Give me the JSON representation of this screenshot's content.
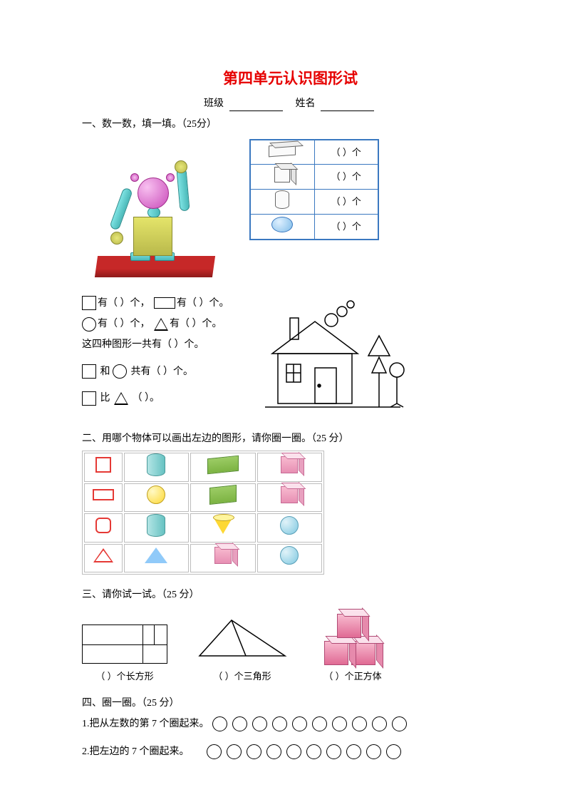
{
  "title": "第四单元认识图形试",
  "header": {
    "class_label": "班级",
    "name_label": "姓名"
  },
  "q1": {
    "heading": "一、数一数，填一填。（25分）",
    "table_unit": "（   ）个",
    "shapes": [
      "cuboid",
      "cube",
      "cylinder",
      "sphere"
    ],
    "line1a": "有（   ）个，",
    "line1b": "有（   ）个。",
    "line2a": "有（   ）个，",
    "line2b": "有（   ）个。",
    "line3": "这四种图形一共有（      ）个。",
    "line4_mid": "和",
    "line4_end": "共有（      ）个。",
    "line5_mid": "比",
    "line5_end": "（         ）。"
  },
  "q2": {
    "heading": "二、用哪个物体可以画出左边的图形，请你圈一圈。（25 分）"
  },
  "q3": {
    "heading": "三、请你试一试。（25 分）",
    "label_rect": "（         ）个长方形",
    "label_tri": "（       ）个三角形",
    "label_cube": "（           ）个正方体"
  },
  "q4": {
    "heading": "四、圈一圈。（25 分）",
    "line1": "1.把从左数的第 7 个圈起来。",
    "line2": "2.把左边的 7 个圈起来。",
    "circle_count": 10
  },
  "colors": {
    "title": "#e60000",
    "table_border": "#3a78c0",
    "grid_border": "#bdbdbd"
  }
}
